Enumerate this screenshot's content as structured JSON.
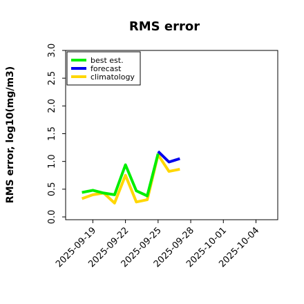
{
  "chart_data": {
    "type": "line",
    "title": "RMS error",
    "ylabel": "RMS error, log10(mg/m3)",
    "xlabel": "",
    "ylim": [
      -0.05,
      3.0
    ],
    "yticks": [
      0.0,
      0.5,
      1.0,
      1.5,
      2.0,
      2.5,
      3.0
    ],
    "ytick_labels": [
      "0.0",
      "0.5",
      "1.0",
      "1.5",
      "2.0",
      "2.5",
      "3.0"
    ],
    "xlim": [
      "2025-09-16T12:00",
      "2025-10-06T00:00"
    ],
    "xticks": [
      "2025-09-19",
      "2025-09-22",
      "2025-09-25",
      "2025-09-28",
      "2025-10-01",
      "2025-10-04"
    ],
    "xtick_colors": [
      "#000000",
      "#000000",
      "#008000",
      "#000000",
      "#000000",
      "#000000"
    ],
    "grid": false,
    "legend_position": "top-left",
    "series": [
      {
        "name": "best est.",
        "color": "#00ee00",
        "x": [
          "2025-09-18",
          "2025-09-19",
          "2025-09-20",
          "2025-09-21",
          "2025-09-22",
          "2025-09-23",
          "2025-09-24",
          "2025-09-25"
        ],
        "y": [
          0.44,
          0.48,
          0.43,
          0.4,
          0.94,
          0.47,
          0.38,
          1.14
        ]
      },
      {
        "name": "forecast",
        "color": "#0000ee",
        "x": [
          "2025-09-25",
          "2025-09-26",
          "2025-09-27"
        ],
        "y": [
          1.18,
          0.99,
          1.05
        ]
      },
      {
        "name": "climatology",
        "color": "#ffd700",
        "x": [
          "2025-09-18",
          "2025-09-19",
          "2025-09-20",
          "2025-09-21",
          "2025-09-22",
          "2025-09-23",
          "2025-09-24",
          "2025-09-25",
          "2025-09-26",
          "2025-09-27"
        ],
        "y": [
          0.33,
          0.4,
          0.43,
          0.25,
          0.75,
          0.27,
          0.31,
          1.12,
          0.82,
          0.86
        ]
      }
    ]
  }
}
